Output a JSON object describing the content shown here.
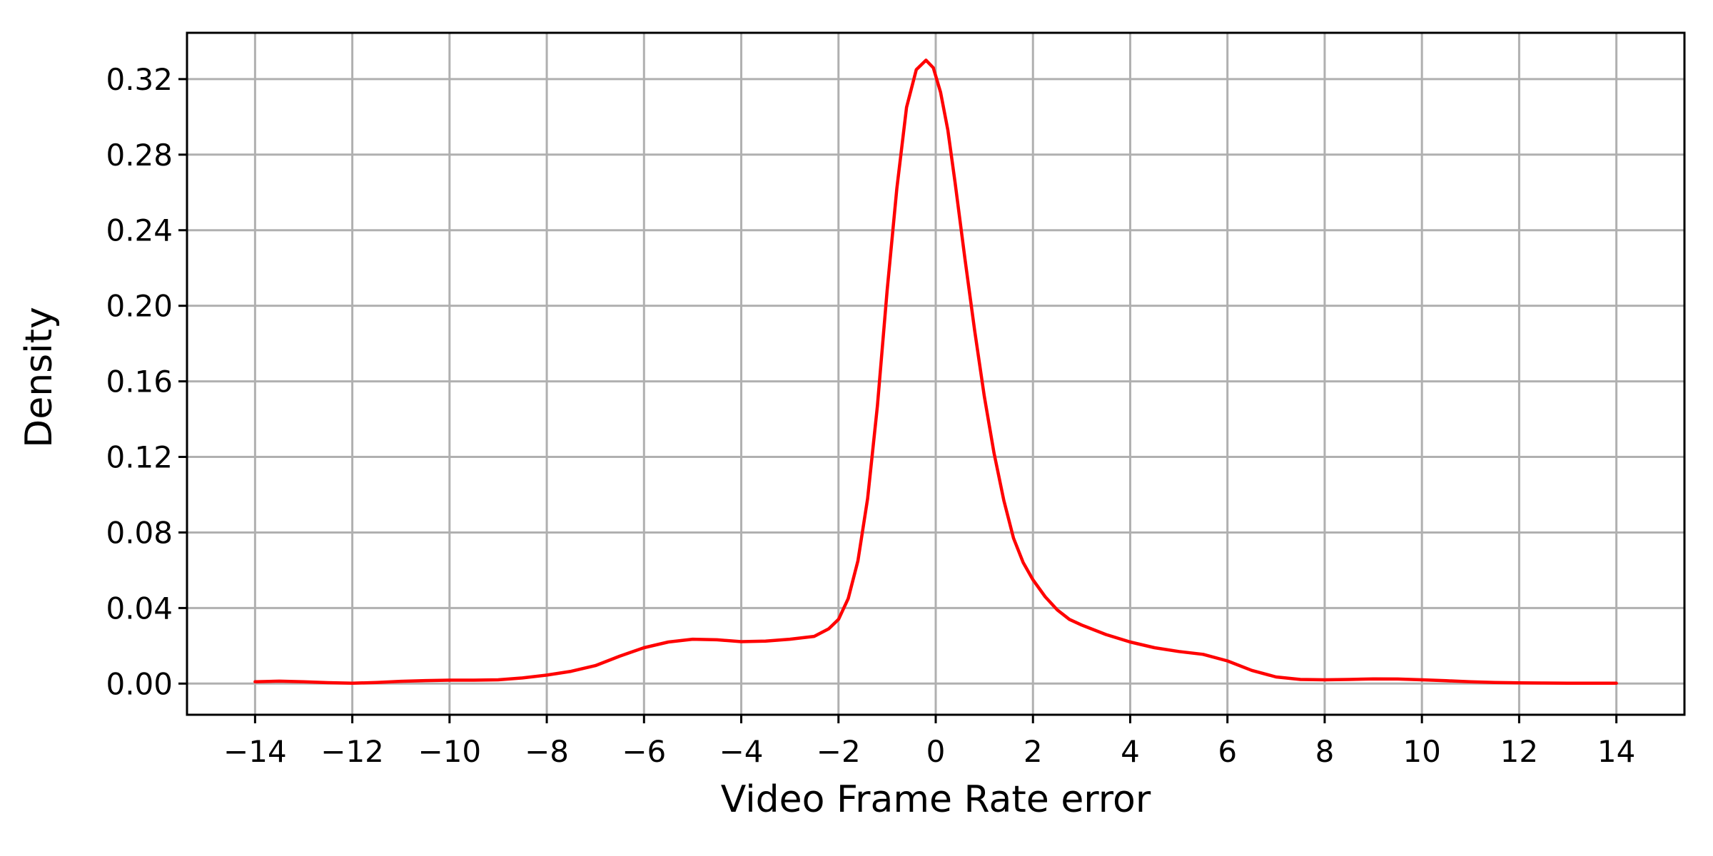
{
  "chart_data": {
    "type": "line",
    "title": "",
    "xlabel": "Video Frame Rate error",
    "ylabel": "Density",
    "xlim": [
      -15.4,
      15.4
    ],
    "ylim": [
      -0.0165,
      0.3445
    ],
    "xticks": [
      -14,
      -12,
      -10,
      -8,
      -6,
      -4,
      -2,
      0,
      2,
      4,
      6,
      8,
      10,
      12,
      14
    ],
    "xtick_labels": [
      "−14",
      "−12",
      "−10",
      "−8",
      "−6",
      "−4",
      "−2",
      "0",
      "2",
      "4",
      "6",
      "8",
      "10",
      "12",
      "14"
    ],
    "yticks": [
      0.0,
      0.04,
      0.08,
      0.12,
      0.16,
      0.2,
      0.24,
      0.28,
      0.32
    ],
    "ytick_labels": [
      "0.00",
      "0.04",
      "0.08",
      "0.12",
      "0.16",
      "0.20",
      "0.24",
      "0.28",
      "0.32"
    ],
    "grid": true,
    "series": [
      {
        "color": "#ff0000",
        "x": [
          -14,
          -13.5,
          -13,
          -12.5,
          -12,
          -11.5,
          -11,
          -10.5,
          -10,
          -9.5,
          -9,
          -8.5,
          -8,
          -7.5,
          -7,
          -6.5,
          -6,
          -5.5,
          -5,
          -4.5,
          -4,
          -3.5,
          -3,
          -2.5,
          -2.2,
          -2,
          -1.8,
          -1.6,
          -1.4,
          -1.2,
          -1,
          -0.8,
          -0.6,
          -0.4,
          -0.2,
          -0.05,
          0.1,
          0.25,
          0.4,
          0.6,
          0.8,
          1,
          1.2,
          1.4,
          1.6,
          1.8,
          2,
          2.25,
          2.5,
          2.75,
          3,
          3.5,
          4,
          4.5,
          5,
          5.5,
          6,
          6.5,
          7,
          7.5,
          8,
          8.5,
          9,
          9.5,
          10,
          10.5,
          11,
          11.5,
          12,
          12.5,
          13,
          13.5,
          14
        ],
        "y": [
          0.001,
          0.0013,
          0.001,
          0.0005,
          0.0002,
          0.0006,
          0.0012,
          0.0016,
          0.0018,
          0.0018,
          0.002,
          0.003,
          0.0045,
          0.0065,
          0.0095,
          0.0145,
          0.019,
          0.022,
          0.0235,
          0.0232,
          0.0222,
          0.0225,
          0.0235,
          0.025,
          0.029,
          0.034,
          0.045,
          0.065,
          0.098,
          0.147,
          0.208,
          0.262,
          0.305,
          0.325,
          0.33,
          0.326,
          0.313,
          0.293,
          0.265,
          0.225,
          0.187,
          0.152,
          0.122,
          0.097,
          0.077,
          0.064,
          0.055,
          0.046,
          0.039,
          0.034,
          0.031,
          0.026,
          0.022,
          0.019,
          0.017,
          0.0155,
          0.012,
          0.007,
          0.0035,
          0.0022,
          0.002,
          0.0022,
          0.0025,
          0.0024,
          0.002,
          0.0015,
          0.001,
          0.0006,
          0.0004,
          0.0003,
          0.0002,
          0.0002,
          0.0002
        ]
      }
    ]
  }
}
